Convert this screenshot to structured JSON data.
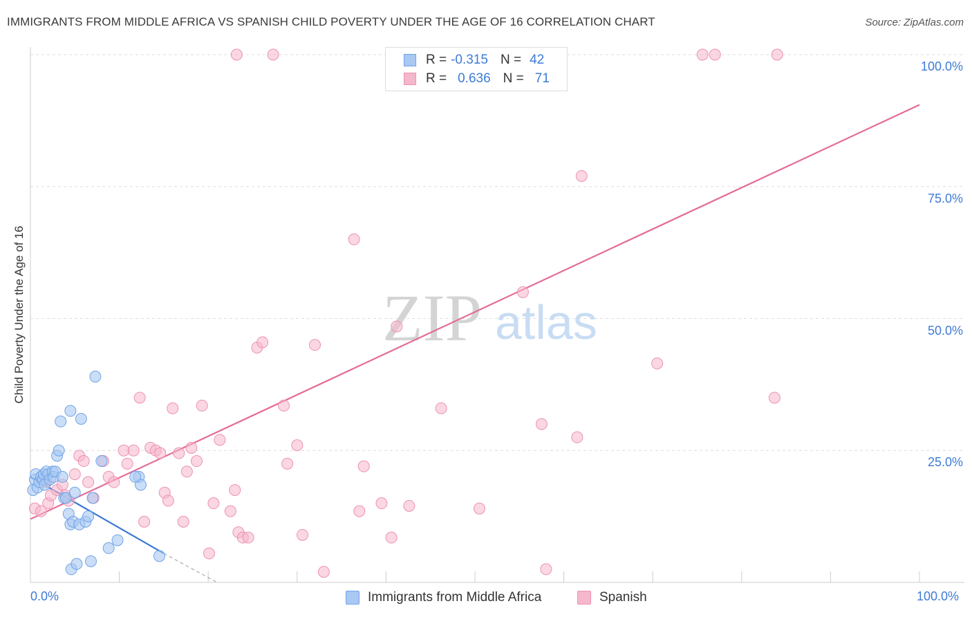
{
  "title": "IMMIGRANTS FROM MIDDLE AFRICA VS SPANISH CHILD POVERTY UNDER THE AGE OF 16 CORRELATION CHART",
  "source": "Source: ZipAtlas.com",
  "watermark": {
    "zip": "ZIP",
    "atlas": "atlas"
  },
  "colors": {
    "blue_fill": "#a9c8f2",
    "blue_stroke": "#6fa3e6",
    "blue_line": "#3a78d4",
    "pink_fill": "#f5b7cb",
    "pink_stroke": "#ec92b0",
    "pink_line": "#e46a98",
    "axis_text": "#3d7bd6",
    "grid": "#dddddd"
  },
  "legend": {
    "rows": [
      {
        "r_label": "R =",
        "r_value": "-0.315",
        "n_label": "N =",
        "n_value": "42"
      },
      {
        "r_label": "R =",
        "r_value": "0.636",
        "n_label": "N =",
        "n_value": "71"
      }
    ]
  },
  "bottom_legend": [
    "Immigrants from Middle Africa",
    "Spanish"
  ],
  "chart_data": {
    "type": "scatter",
    "xlabel": "",
    "ylabel": "Child Poverty Under the Age of 16",
    "xlim": [
      0,
      100
    ],
    "ylim": [
      0,
      100
    ],
    "x_tick_labels": [
      "0.0%",
      "100.0%"
    ],
    "y_tick_labels": [
      "100.0%",
      "75.0%",
      "50.0%",
      "25.0%"
    ],
    "y_ticks": [
      100,
      75,
      50,
      25
    ],
    "series": [
      {
        "name": "Immigrants from Middle Africa",
        "r": -0.315,
        "n": 42,
        "trend": {
          "x0": 0,
          "y0": 20.0,
          "x1": 15.0,
          "y1": 5.5,
          "dash_x1": 21.0,
          "dash_y1": 0
        },
        "points": [
          [
            0.3,
            17.5
          ],
          [
            0.5,
            19.5
          ],
          [
            0.6,
            20.5
          ],
          [
            0.8,
            18.0
          ],
          [
            1.0,
            19.0
          ],
          [
            1.2,
            20.0
          ],
          [
            1.4,
            19.5
          ],
          [
            1.5,
            20.5
          ],
          [
            1.6,
            18.5
          ],
          [
            1.8,
            21.0
          ],
          [
            2.0,
            20.5
          ],
          [
            2.2,
            19.5
          ],
          [
            2.5,
            21.0
          ],
          [
            2.6,
            20.0
          ],
          [
            2.8,
            21.0
          ],
          [
            3.0,
            24.0
          ],
          [
            3.2,
            25.0
          ],
          [
            3.4,
            30.5
          ],
          [
            3.6,
            20.0
          ],
          [
            3.8,
            16.0
          ],
          [
            4.0,
            16.0
          ],
          [
            4.3,
            13.0
          ],
          [
            4.5,
            11.0
          ],
          [
            4.6,
            2.5
          ],
          [
            4.8,
            11.5
          ],
          [
            5.0,
            17.0
          ],
          [
            5.2,
            3.5
          ],
          [
            5.5,
            11.0
          ],
          [
            5.7,
            31.0
          ],
          [
            6.2,
            11.5
          ],
          [
            6.5,
            12.5
          ],
          [
            6.8,
            4.0
          ],
          [
            7.0,
            16.0
          ],
          [
            7.3,
            39.0
          ],
          [
            8.0,
            23.0
          ],
          [
            8.8,
            6.5
          ],
          [
            9.8,
            8.0
          ],
          [
            12.2,
            20.0
          ],
          [
            12.4,
            18.5
          ],
          [
            11.8,
            20.0
          ],
          [
            14.5,
            5.0
          ],
          [
            4.5,
            32.5
          ]
        ]
      },
      {
        "name": "Spanish",
        "r": 0.636,
        "n": 71,
        "trend": {
          "x0": 0,
          "y0": 12.0,
          "x1": 100,
          "y1": 90.5
        },
        "points": [
          [
            0.5,
            14.0
          ],
          [
            1.2,
            13.5
          ],
          [
            1.8,
            19.0
          ],
          [
            2.0,
            15.0
          ],
          [
            2.3,
            16.5
          ],
          [
            3.0,
            17.5
          ],
          [
            3.6,
            18.5
          ],
          [
            3.9,
            16.5
          ],
          [
            4.3,
            15.5
          ],
          [
            5.0,
            20.5
          ],
          [
            5.5,
            24.0
          ],
          [
            6.0,
            23.0
          ],
          [
            6.5,
            19.0
          ],
          [
            7.1,
            16.0
          ],
          [
            8.2,
            23.0
          ],
          [
            8.8,
            20.0
          ],
          [
            9.4,
            19.0
          ],
          [
            10.5,
            25.0
          ],
          [
            10.9,
            22.5
          ],
          [
            11.6,
            25.0
          ],
          [
            12.3,
            35.0
          ],
          [
            12.8,
            11.5
          ],
          [
            13.5,
            25.5
          ],
          [
            14.1,
            25.0
          ],
          [
            14.6,
            24.5
          ],
          [
            15.1,
            17.0
          ],
          [
            15.5,
            15.5
          ],
          [
            16.0,
            33.0
          ],
          [
            16.7,
            24.5
          ],
          [
            17.2,
            11.5
          ],
          [
            17.6,
            21.0
          ],
          [
            18.1,
            25.5
          ],
          [
            18.7,
            23.0
          ],
          [
            19.3,
            33.5
          ],
          [
            20.1,
            5.5
          ],
          [
            20.6,
            15.0
          ],
          [
            21.3,
            27.0
          ],
          [
            22.5,
            13.5
          ],
          [
            23.0,
            17.5
          ],
          [
            23.4,
            9.5
          ],
          [
            23.9,
            8.5
          ],
          [
            24.5,
            8.5
          ],
          [
            25.5,
            44.5
          ],
          [
            26.1,
            45.5
          ],
          [
            28.5,
            33.5
          ],
          [
            28.9,
            22.5
          ],
          [
            30.0,
            26.0
          ],
          [
            30.6,
            9.0
          ],
          [
            32.0,
            45.0
          ],
          [
            33.0,
            2.0
          ],
          [
            36.4,
            65.0
          ],
          [
            37.0,
            13.5
          ],
          [
            37.5,
            22.0
          ],
          [
            39.5,
            15.0
          ],
          [
            40.6,
            8.5
          ],
          [
            41.2,
            48.5
          ],
          [
            42.6,
            14.5
          ],
          [
            46.2,
            33.0
          ],
          [
            50.5,
            14.0
          ],
          [
            55.4,
            55.0
          ],
          [
            57.5,
            30.0
          ],
          [
            58.0,
            2.5
          ],
          [
            61.5,
            27.5
          ],
          [
            62.0,
            77.0
          ],
          [
            70.5,
            41.5
          ],
          [
            83.7,
            35.0
          ],
          [
            23.2,
            100.0
          ],
          [
            27.3,
            100.0
          ],
          [
            75.6,
            100.0
          ],
          [
            77.0,
            100.0
          ],
          [
            84.0,
            100.0
          ]
        ]
      }
    ]
  }
}
